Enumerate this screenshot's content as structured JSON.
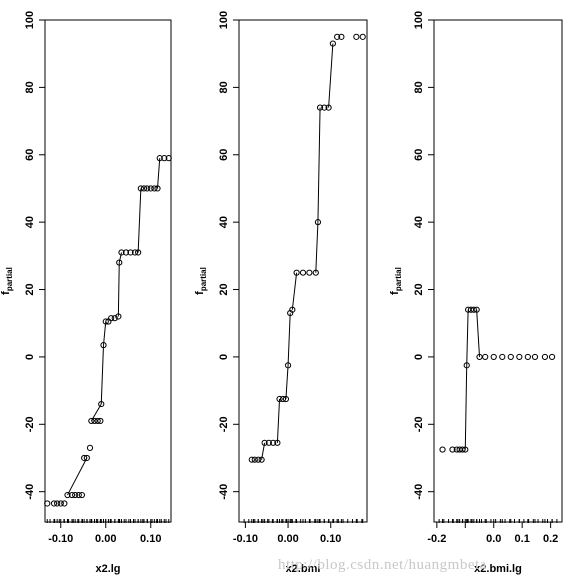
{
  "watermark": "http://blog.csdn.net/huangmbeta",
  "chart_data": [
    {
      "type": "step-scatter",
      "xlabel": "x2.lg",
      "ylabel": "f",
      "ylabel_sub": "partial",
      "xlim": [
        -0.135,
        0.145
      ],
      "ylim": [
        -49,
        100
      ],
      "xticks": [
        -0.1,
        0.0,
        0.1
      ],
      "xtick_labels": [
        "-0.10",
        "0.00",
        "0.10"
      ],
      "yticks": [
        -40,
        -20,
        0,
        20,
        40,
        60,
        80,
        100
      ],
      "ytick_labels": [
        "-40",
        "-20",
        "0",
        "20",
        "40",
        "60",
        "80",
        "100"
      ],
      "points": [
        [
          -0.13,
          -43.5
        ],
        [
          -0.115,
          -43.5
        ],
        [
          -0.108,
          -43.5
        ],
        [
          -0.1,
          -43.5
        ],
        [
          -0.092,
          -43.5
        ],
        [
          -0.085,
          -41
        ],
        [
          -0.075,
          -41
        ],
        [
          -0.068,
          -41
        ],
        [
          -0.06,
          -41
        ],
        [
          -0.053,
          -41
        ],
        [
          -0.048,
          -30
        ],
        [
          -0.042,
          -30
        ],
        [
          -0.035,
          -27
        ],
        [
          -0.032,
          -19
        ],
        [
          -0.025,
          -19
        ],
        [
          -0.018,
          -19
        ],
        [
          -0.012,
          -19
        ],
        [
          -0.01,
          -14
        ],
        [
          -0.005,
          3.5
        ],
        [
          0.0,
          10.5
        ],
        [
          0.006,
          10.5
        ],
        [
          0.012,
          11.5
        ],
        [
          0.02,
          11.5
        ],
        [
          0.028,
          12
        ],
        [
          0.03,
          28
        ],
        [
          0.035,
          31
        ],
        [
          0.045,
          31
        ],
        [
          0.055,
          31
        ],
        [
          0.065,
          31
        ],
        [
          0.072,
          31
        ],
        [
          0.078,
          50
        ],
        [
          0.085,
          50
        ],
        [
          0.092,
          50
        ],
        [
          0.1,
          50
        ],
        [
          0.108,
          50
        ],
        [
          0.115,
          50
        ],
        [
          0.12,
          59
        ],
        [
          0.13,
          59
        ],
        [
          0.14,
          59
        ]
      ],
      "segments": [
        [
          -0.085,
          -41,
          -0.042,
          -30
        ],
        [
          -0.032,
          -19,
          -0.01,
          -14
        ],
        [
          -0.01,
          -14,
          -0.005,
          3.5
        ],
        [
          -0.005,
          3.5,
          0.0,
          10.5
        ],
        [
          0.028,
          12,
          0.03,
          28
        ],
        [
          0.03,
          28,
          0.035,
          31
        ],
        [
          0.072,
          31,
          0.078,
          50
        ],
        [
          0.115,
          50,
          0.12,
          59
        ]
      ]
    },
    {
      "type": "step-scatter",
      "xlabel": "x2.bmi",
      "ylabel": "f",
      "ylabel_sub": "partial",
      "xlim": [
        -0.115,
        0.185
      ],
      "ylim": [
        -49,
        100
      ],
      "xticks": [
        -0.1,
        0.0,
        0.1
      ],
      "xtick_labels": [
        "-0.10",
        "0.00",
        "0.10"
      ],
      "yticks": [
        -40,
        -20,
        0,
        20,
        40,
        60,
        80,
        100
      ],
      "ytick_labels": [
        "-40",
        "-20",
        "0",
        "20",
        "40",
        "60",
        "80",
        "100"
      ],
      "points": [
        [
          -0.085,
          -30.5
        ],
        [
          -0.078,
          -30.5
        ],
        [
          -0.07,
          -30.5
        ],
        [
          -0.062,
          -30.5
        ],
        [
          -0.055,
          -25.5
        ],
        [
          -0.045,
          -25.5
        ],
        [
          -0.035,
          -25.5
        ],
        [
          -0.025,
          -25.5
        ],
        [
          -0.02,
          -12.5
        ],
        [
          -0.012,
          -12.5
        ],
        [
          -0.005,
          -12.5
        ],
        [
          0.0,
          -2.5
        ],
        [
          0.005,
          13
        ],
        [
          0.01,
          14
        ],
        [
          0.02,
          25
        ],
        [
          0.035,
          25
        ],
        [
          0.05,
          25
        ],
        [
          0.065,
          25
        ],
        [
          0.07,
          40
        ],
        [
          0.075,
          74
        ],
        [
          0.085,
          74
        ],
        [
          0.095,
          74
        ],
        [
          0.105,
          93
        ],
        [
          0.115,
          95
        ],
        [
          0.125,
          95
        ],
        [
          0.16,
          95
        ],
        [
          0.175,
          95
        ]
      ],
      "segments": [
        [
          -0.062,
          -30.5,
          -0.055,
          -25.5
        ],
        [
          -0.025,
          -25.5,
          -0.02,
          -12.5
        ],
        [
          -0.005,
          -12.5,
          0.0,
          -2.5
        ],
        [
          0.0,
          -2.5,
          0.005,
          13
        ],
        [
          0.01,
          14,
          0.02,
          25
        ],
        [
          0.065,
          25,
          0.07,
          40
        ],
        [
          0.07,
          40,
          0.075,
          74
        ],
        [
          0.095,
          74,
          0.105,
          93
        ]
      ]
    },
    {
      "type": "step-scatter",
      "xlabel": "x2.bmi.lg",
      "ylabel": "f",
      "ylabel_sub": "partial",
      "xlim": [
        -0.21,
        0.24
      ],
      "ylim": [
        -49,
        100
      ],
      "xticks": [
        -0.2,
        -0.1,
        0.0,
        0.1,
        0.2
      ],
      "xtick_labels": [
        "-0.2",
        "",
        "0.0",
        "0.1",
        "0.2"
      ],
      "yticks": [
        -40,
        -20,
        0,
        20,
        40,
        60,
        80,
        100
      ],
      "ytick_labels": [
        "-40",
        "-20",
        "0",
        "20",
        "40",
        "60",
        "80",
        "100"
      ],
      "points": [
        [
          -0.18,
          -27.5
        ],
        [
          -0.145,
          -27.5
        ],
        [
          -0.13,
          -27.5
        ],
        [
          -0.12,
          -27.5
        ],
        [
          -0.11,
          -27.5
        ],
        [
          -0.1,
          -27.5
        ],
        [
          -0.095,
          -2.5
        ],
        [
          -0.09,
          14
        ],
        [
          -0.08,
          14
        ],
        [
          -0.07,
          14
        ],
        [
          -0.06,
          14
        ],
        [
          -0.05,
          0
        ],
        [
          -0.03,
          0
        ],
        [
          0.0,
          0
        ],
        [
          0.03,
          0
        ],
        [
          0.06,
          0
        ],
        [
          0.09,
          0
        ],
        [
          0.12,
          0
        ],
        [
          0.145,
          0
        ],
        [
          0.18,
          0
        ],
        [
          0.205,
          0
        ]
      ],
      "segments": [
        [
          -0.1,
          -27.5,
          -0.095,
          -2.5
        ],
        [
          -0.095,
          -2.5,
          -0.09,
          14
        ],
        [
          -0.06,
          14,
          -0.05,
          0
        ]
      ]
    }
  ]
}
